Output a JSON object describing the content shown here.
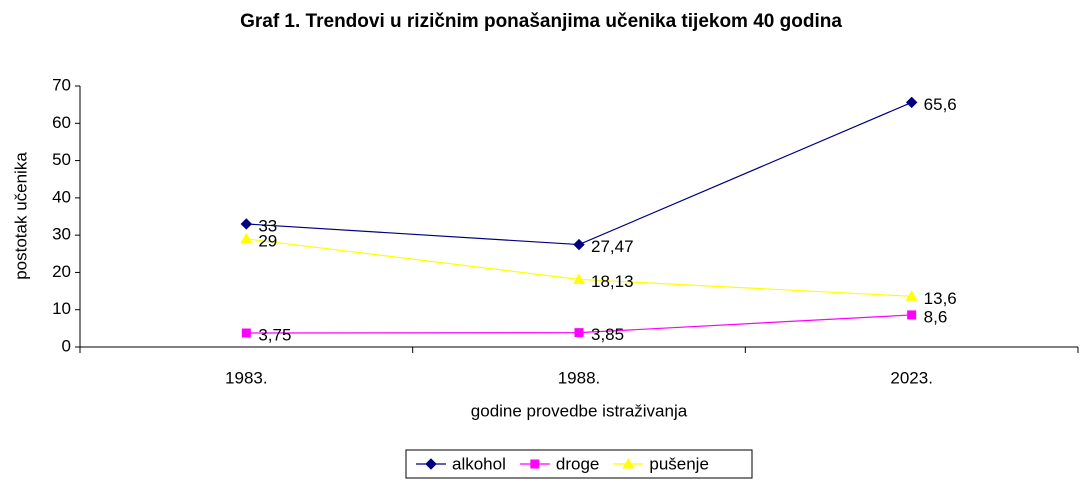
{
  "chart_data": {
    "type": "line",
    "title": "Graf 1. Trendovi u rizičnim ponašanjima učenika tijekom 40 godina",
    "x_label": "godine provedbe istraživanja",
    "y_label": "postotak učenika",
    "categories": [
      "1983.",
      "1988.",
      "2023."
    ],
    "series": [
      {
        "name": "alkohol",
        "color": "#000080",
        "marker": "diamond",
        "values": [
          33,
          27.47,
          65.6
        ],
        "value_labels": [
          "33",
          "27,47",
          "65,6"
        ]
      },
      {
        "name": "droge",
        "color": "#ff00ff",
        "marker": "square",
        "values": [
          3.75,
          3.85,
          8.6
        ],
        "value_labels": [
          "3,75",
          "3,85",
          "8,6"
        ]
      },
      {
        "name": "pušenje",
        "color": "#ffff00",
        "marker": "triangle",
        "values": [
          29,
          18.13,
          13.6
        ],
        "value_labels": [
          "29",
          "18,13",
          "13,6"
        ]
      }
    ],
    "ylim": [
      0,
      70
    ],
    "yticks": [
      0,
      10,
      20,
      30,
      40,
      50,
      60,
      70
    ],
    "grid": false,
    "legend": "bottom"
  }
}
